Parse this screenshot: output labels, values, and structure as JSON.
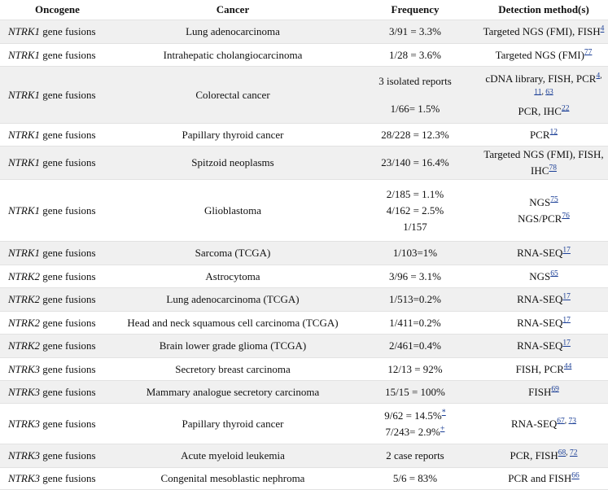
{
  "headers": [
    "Oncogene",
    "Cancer",
    "Frequency",
    "Detection method(s)"
  ],
  "rows": [
    {
      "gene": "NTRK1",
      "suffix": " gene fusions",
      "cancer": "Lung adenocarcinoma",
      "freq": [
        "3/91 = 3.3%"
      ],
      "method": "Targeted NGS (FMI), FISH",
      "refs": [
        "4"
      ]
    },
    {
      "gene": "NTRK1",
      "suffix": " gene fusions",
      "cancer": "Intrahepatic cholangiocarcinoma",
      "freq": [
        "1/28 = 3.6%"
      ],
      "method": "Targeted NGS (FMI)",
      "refs": [
        "77"
      ]
    },
    {
      "gene": "NTRK1",
      "suffix": " gene fusions",
      "cancer": "Colorectal cancer",
      "freq": [
        "3 isolated reports",
        "1/66= 1.5%"
      ],
      "method_lines": [
        {
          "text": "cDNA library, FISH, PCR",
          "refs": [
            "4",
            "11",
            "63"
          ]
        },
        {
          "text": "PCR, IHC",
          "refs": [
            "22"
          ]
        }
      ]
    },
    {
      "gene": "NTRK1",
      "suffix": " gene fusions",
      "cancer": "Papillary thyroid cancer",
      "freq": [
        "28/228 = 12.3%"
      ],
      "method": "PCR",
      "refs": [
        "12"
      ]
    },
    {
      "gene": "NTRK1",
      "suffix": " gene fusions",
      "cancer": "Spitzoid neoplasms",
      "freq": [
        "23/140 = 16.4%"
      ],
      "method": "Targeted NGS (FMI), FISH, IHC",
      "refs": [
        "78"
      ]
    },
    {
      "gene": "NTRK1",
      "suffix": " gene fusions",
      "cancer": "Glioblastoma",
      "freq": [
        "2/185 = 1.1%",
        "4/162 = 2.5%",
        "1/157"
      ],
      "method_lines": [
        {
          "text": "NGS",
          "refs": [
            "75"
          ]
        },
        {
          "text": "NGS/PCR",
          "refs": [
            "76"
          ]
        }
      ]
    },
    {
      "gene": "NTRK1",
      "suffix": " gene fusions",
      "cancer": "Sarcoma (TCGA)",
      "freq": [
        "1/103=1%"
      ],
      "method": "RNA-SEQ",
      "refs": [
        "17"
      ]
    },
    {
      "gene": "NTRK2",
      "suffix": " gene fusions",
      "cancer": "Astrocytoma",
      "freq": [
        "3/96 = 3.1%"
      ],
      "method": "NGS",
      "refs": [
        "65"
      ]
    },
    {
      "gene": "NTRK2",
      "suffix": " gene fusions",
      "cancer": "Lung adenocarcinoma (TCGA)",
      "freq": [
        "1/513=0.2%"
      ],
      "method": "RNA-SEQ",
      "refs": [
        "17"
      ]
    },
    {
      "gene": "NTRK2",
      "suffix": " gene fusions",
      "cancer": "Head and neck squamous cell carcinoma (TCGA)",
      "freq": [
        "1/411=0.2%"
      ],
      "method": "RNA-SEQ",
      "refs": [
        "17"
      ]
    },
    {
      "gene": "NTRK2",
      "suffix": " gene fusions",
      "cancer": "Brain lower grade glioma (TCGA)",
      "freq": [
        "2/461=0.4%"
      ],
      "method": "RNA-SEQ",
      "refs": [
        "17"
      ]
    },
    {
      "gene": "NTRK3",
      "suffix": " gene fusions",
      "cancer": "Secretory breast carcinoma",
      "freq": [
        "12/13 = 92%"
      ],
      "method": "FISH, PCR",
      "refs": [
        "44"
      ]
    },
    {
      "gene": "NTRK3",
      "suffix": " gene fusions",
      "cancer": "Mammary analogue secretory carcinoma",
      "freq": [
        "15/15 = 100%"
      ],
      "method": "FISH",
      "refs": [
        "69"
      ]
    },
    {
      "gene": "NTRK3",
      "suffix": " gene fusions",
      "cancer": "Papillary thyroid cancer",
      "freq": [
        "9/62 = 14.5%",
        "7/243= 2.9%"
      ],
      "freq_marks": [
        "*",
        "+"
      ],
      "method": "RNA-SEQ",
      "refs": [
        "67",
        "73"
      ]
    },
    {
      "gene": "NTRK3",
      "suffix": " gene fusions",
      "cancer": "Acute myeloid leukemia",
      "freq": [
        "2 case reports"
      ],
      "method": "PCR, FISH",
      "refs": [
        "68",
        "72"
      ]
    },
    {
      "gene": "NTRK3",
      "suffix": " gene fusions",
      "cancer": "Congenital mesoblastic nephroma",
      "freq": [
        "5/6 = 83%"
      ],
      "method": "PCR and FISH",
      "refs": [
        "66"
      ]
    }
  ],
  "link_color": "#1b3f96",
  "stripe_color": "#f0f0f0"
}
